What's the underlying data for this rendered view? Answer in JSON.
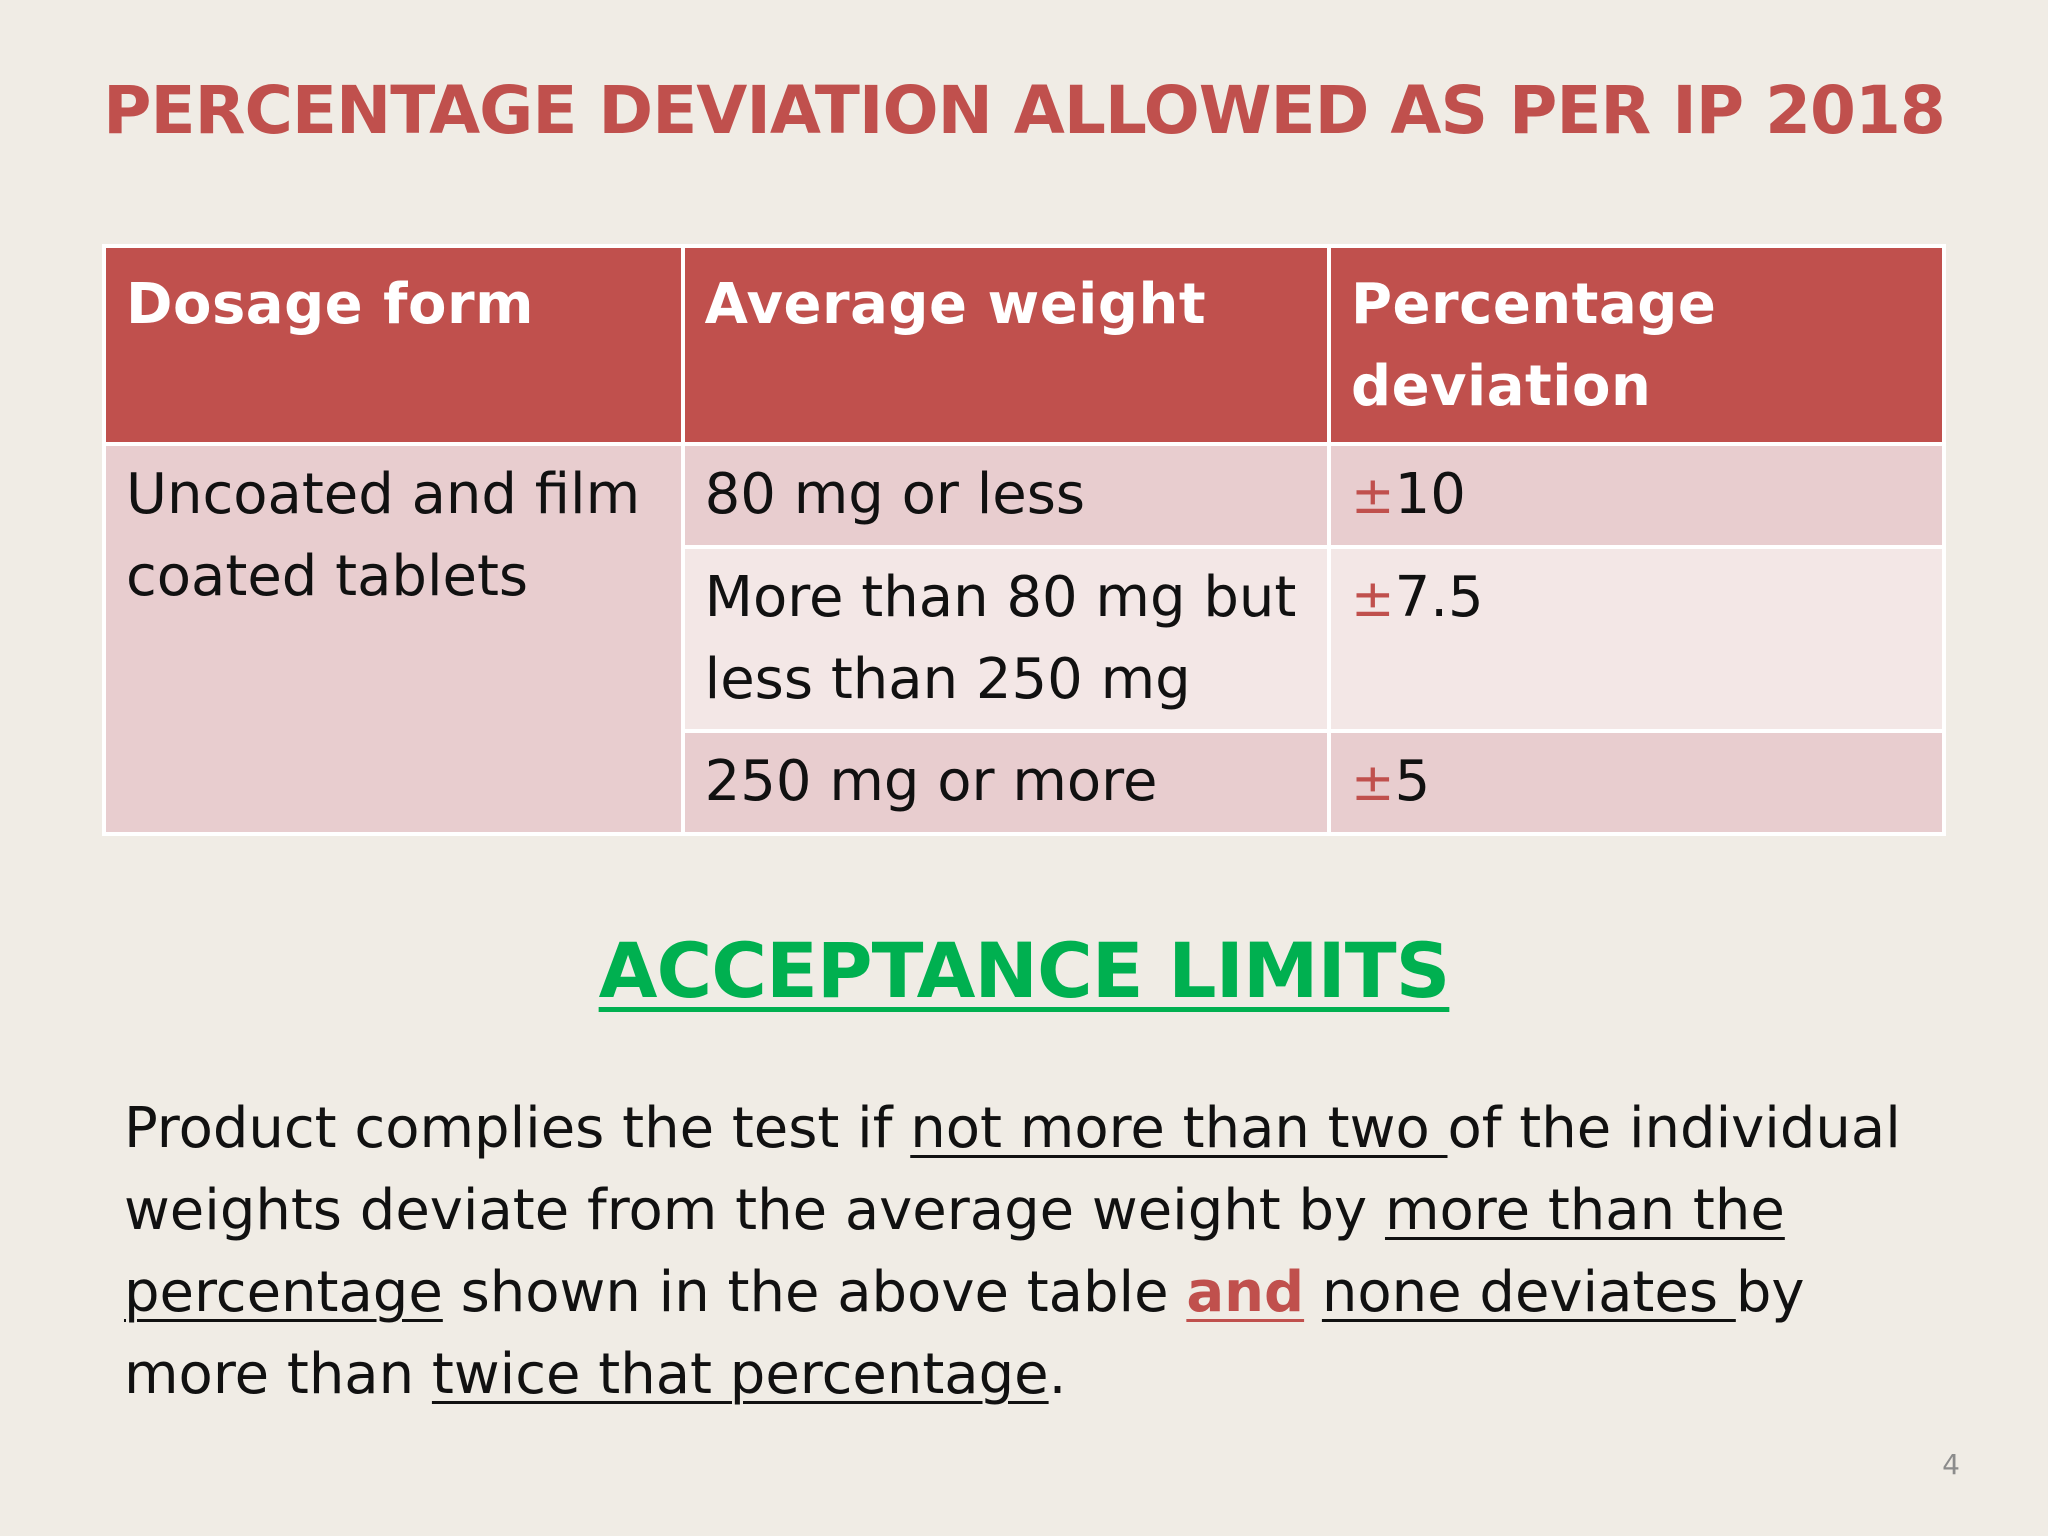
{
  "slide": {
    "title": "PERCENTAGE DEVIATION ALLOWED AS PER IP 2018",
    "page_number": "4"
  },
  "table": {
    "headers": [
      "Dosage form",
      "Average weight",
      "Percentage deviation"
    ],
    "dosage_form": "Uncoated and film coated tablets",
    "rows": [
      {
        "weight": "80 mg or less",
        "sign": "±",
        "deviation": "10"
      },
      {
        "weight": "More than 80 mg but less than 250 mg",
        "sign": "±",
        "deviation": "7.5"
      },
      {
        "weight": "250 mg or more",
        "sign": "±",
        "deviation": "5"
      }
    ]
  },
  "acceptance": {
    "heading": "ACCEPTANCE LIMITS",
    "text": {
      "t1": "Product complies the test if ",
      "u1": "not more than two ",
      "t2": "of the individual weights deviate from the average weight by ",
      "u2": "more than the percentage",
      "t3": " shown in the above table ",
      "red": "and",
      "t4": " ",
      "u3": "none deviates ",
      "t5": "by more than ",
      "u4": "twice that percentage",
      "t6": "."
    }
  },
  "colors": {
    "accent_red": "#c0504d",
    "heading_green": "#00b050",
    "row_shade_dark": "#e8cdcf",
    "row_shade_light": "#f3e7e6",
    "background": "#f0ece5"
  }
}
